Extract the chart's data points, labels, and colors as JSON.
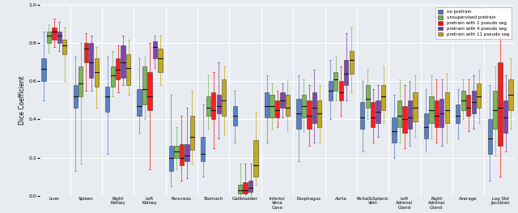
{
  "categories": [
    "Liver",
    "Spleen",
    "Right\nKidney",
    "Left\nKidney",
    "Pancreas",
    "Stomach",
    "Gallbladder",
    "Inferior\nVena\nCava",
    "Esophagus",
    "Aorta",
    "Portal&Splenic\nVein",
    "Left\nAdrenal\nGland",
    "Right\nAdrenal\nGland",
    "Average",
    "Log Std\nJacobian"
  ],
  "legend_labels": [
    "no pretrain",
    "unsupervised pretrain",
    "pretrain with 1 pseudo seg",
    "pretrain with 4 pseudo seg",
    "pretrain with 11 pseudo seg"
  ],
  "colors": [
    "#4472C4",
    "#70AD47",
    "#FF0000",
    "#7030A0",
    "#C0A000"
  ],
  "background_color": "#E8ECF0",
  "ylabel": "Dice Coefficient",
  "ylim": [
    0.0,
    1.0
  ],
  "yticks": [
    0.0,
    0.2,
    0.4,
    0.6,
    0.8,
    1.0
  ],
  "box_data": {
    "Liver": [
      [
        0.5,
        0.6,
        0.665,
        0.72,
        0.86
      ],
      [
        0.75,
        0.8,
        0.84,
        0.86,
        0.9
      ],
      [
        0.78,
        0.82,
        0.86,
        0.88,
        0.93
      ],
      [
        0.76,
        0.8,
        0.84,
        0.86,
        0.91
      ],
      [
        0.6,
        0.74,
        0.79,
        0.82,
        0.88
      ]
    ],
    "Spleen": [
      [
        0.13,
        0.46,
        0.52,
        0.58,
        0.73
      ],
      [
        0.17,
        0.52,
        0.59,
        0.68,
        0.8
      ],
      [
        0.55,
        0.7,
        0.77,
        0.8,
        0.85
      ],
      [
        0.55,
        0.62,
        0.7,
        0.8,
        0.84
      ],
      [
        0.46,
        0.57,
        0.65,
        0.72,
        0.78
      ]
    ],
    "Right\nKidney": [
      [
        0.22,
        0.44,
        0.52,
        0.57,
        0.73
      ],
      [
        0.52,
        0.57,
        0.63,
        0.68,
        0.76
      ],
      [
        0.54,
        0.61,
        0.66,
        0.72,
        0.79
      ],
      [
        0.58,
        0.62,
        0.7,
        0.79,
        0.84
      ],
      [
        0.53,
        0.58,
        0.67,
        0.74,
        0.82
      ]
    ],
    "Left\nKidney": [
      [
        0.33,
        0.42,
        0.47,
        0.56,
        0.72
      ],
      [
        0.4,
        0.48,
        0.56,
        0.68,
        0.73
      ],
      [
        0.14,
        0.45,
        0.52,
        0.65,
        0.8
      ],
      [
        0.67,
        0.72,
        0.78,
        0.81,
        0.84
      ],
      [
        0.58,
        0.65,
        0.72,
        0.77,
        0.84
      ]
    ],
    "Pancreas": [
      [
        0.05,
        0.13,
        0.2,
        0.26,
        0.53
      ],
      [
        0.14,
        0.2,
        0.23,
        0.26,
        0.36
      ],
      [
        0.08,
        0.16,
        0.2,
        0.27,
        0.42
      ],
      [
        0.09,
        0.18,
        0.21,
        0.27,
        0.46
      ],
      [
        0.17,
        0.24,
        0.31,
        0.42,
        0.55
      ]
    ],
    "Stomach": [
      [
        0.1,
        0.18,
        0.22,
        0.31,
        0.48
      ],
      [
        0.35,
        0.42,
        0.46,
        0.52,
        0.63
      ],
      [
        0.25,
        0.4,
        0.45,
        0.54,
        0.65
      ],
      [
        0.3,
        0.43,
        0.47,
        0.53,
        0.7
      ],
      [
        0.32,
        0.42,
        0.5,
        0.61,
        0.68
      ]
    ],
    "Gallbladder": [
      [
        0.28,
        0.37,
        0.42,
        0.47,
        0.55
      ],
      [
        0.0,
        0.01,
        0.03,
        0.06,
        0.17
      ],
      [
        0.0,
        0.01,
        0.03,
        0.07,
        0.17
      ],
      [
        0.0,
        0.02,
        0.04,
        0.08,
        0.17
      ],
      [
        0.06,
        0.1,
        0.16,
        0.29,
        0.44
      ]
    ],
    "Inferior\nVena\nCava": [
      [
        0.28,
        0.41,
        0.47,
        0.54,
        0.63
      ],
      [
        0.35,
        0.41,
        0.47,
        0.53,
        0.59
      ],
      [
        0.36,
        0.41,
        0.45,
        0.5,
        0.55
      ],
      [
        0.41,
        0.46,
        0.5,
        0.54,
        0.59
      ],
      [
        0.34,
        0.42,
        0.46,
        0.53,
        0.61
      ]
    ],
    "Esophagus": [
      [
        0.18,
        0.35,
        0.43,
        0.51,
        0.63
      ],
      [
        0.34,
        0.41,
        0.47,
        0.53,
        0.61
      ],
      [
        0.26,
        0.35,
        0.42,
        0.5,
        0.58
      ],
      [
        0.28,
        0.38,
        0.46,
        0.54,
        0.66
      ],
      [
        0.28,
        0.36,
        0.43,
        0.5,
        0.58
      ]
    ],
    "Aorta": [
      [
        0.4,
        0.5,
        0.55,
        0.6,
        0.71
      ],
      [
        0.5,
        0.55,
        0.61,
        0.65,
        0.73
      ],
      [
        0.42,
        0.5,
        0.54,
        0.6,
        0.68
      ],
      [
        0.5,
        0.58,
        0.64,
        0.71,
        0.85
      ],
      [
        0.54,
        0.64,
        0.71,
        0.76,
        0.88
      ]
    ],
    "Portal&Splenic\nVein": [
      [
        0.23,
        0.35,
        0.41,
        0.49,
        0.6
      ],
      [
        0.4,
        0.46,
        0.51,
        0.58,
        0.66
      ],
      [
        0.28,
        0.36,
        0.41,
        0.49,
        0.56
      ],
      [
        0.31,
        0.38,
        0.44,
        0.5,
        0.58
      ],
      [
        0.38,
        0.45,
        0.52,
        0.58,
        0.68
      ]
    ],
    "Left\nAdrenal\nGland": [
      [
        0.2,
        0.28,
        0.34,
        0.41,
        0.53
      ],
      [
        0.28,
        0.36,
        0.42,
        0.5,
        0.61
      ],
      [
        0.25,
        0.33,
        0.4,
        0.47,
        0.58
      ],
      [
        0.26,
        0.35,
        0.41,
        0.5,
        0.6
      ],
      [
        0.31,
        0.39,
        0.46,
        0.54,
        0.63
      ]
    ],
    "Right\nAdrenal\nGland": [
      [
        0.23,
        0.3,
        0.36,
        0.43,
        0.56
      ],
      [
        0.3,
        0.38,
        0.45,
        0.52,
        0.63
      ],
      [
        0.28,
        0.36,
        0.42,
        0.5,
        0.61
      ],
      [
        0.26,
        0.36,
        0.43,
        0.51,
        0.61
      ],
      [
        0.28,
        0.38,
        0.45,
        0.54,
        0.64
      ]
    ],
    "Average": [
      [
        0.3,
        0.38,
        0.42,
        0.48,
        0.56
      ],
      [
        0.4,
        0.45,
        0.5,
        0.55,
        0.61
      ],
      [
        0.34,
        0.42,
        0.46,
        0.53,
        0.61
      ],
      [
        0.35,
        0.43,
        0.49,
        0.55,
        0.63
      ],
      [
        0.38,
        0.46,
        0.52,
        0.59,
        0.66
      ]
    ],
    "Log Std\nJacobian": [
      [
        0.08,
        0.22,
        0.3,
        0.4,
        0.58
      ],
      [
        0.21,
        0.35,
        0.45,
        0.55,
        0.68
      ],
      [
        0.1,
        0.26,
        0.46,
        0.7,
        0.93
      ],
      [
        0.23,
        0.33,
        0.41,
        0.5,
        0.63
      ],
      [
        0.35,
        0.45,
        0.53,
        0.61,
        0.72
      ]
    ]
  }
}
